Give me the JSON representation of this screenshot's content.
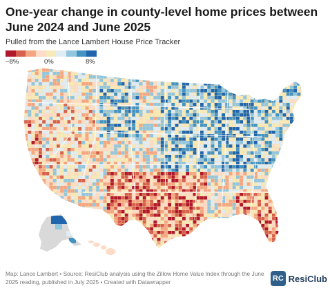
{
  "header": {
    "title": "One-year change in county-level home prices between June 2024 and June 2025",
    "subtitle": "Pulled from the Lance Lambert House Price Tracker"
  },
  "legend": {
    "labels": [
      "−8%",
      "0%",
      "8%"
    ],
    "colors": [
      "#b2182b",
      "#d6604d",
      "#f4a582",
      "#fddbc7",
      "#f7e9b8",
      "#e0ecf4",
      "#92c5de",
      "#4393c3",
      "#2166ac"
    ]
  },
  "map": {
    "base_color": "#f3deaa",
    "no_data_color": "#d9d9d9",
    "border_color": "#ffffff"
  },
  "footer": {
    "credit": "Map: Lance Lambert • Source: ResiClub analysis using the Zillow Home Value Index through the June 2025 reading, published in July 2025 • Created with Datawrapper"
  },
  "brand": {
    "mark": "RC",
    "name": "ResiClub",
    "color": "#2f5f8a"
  }
}
